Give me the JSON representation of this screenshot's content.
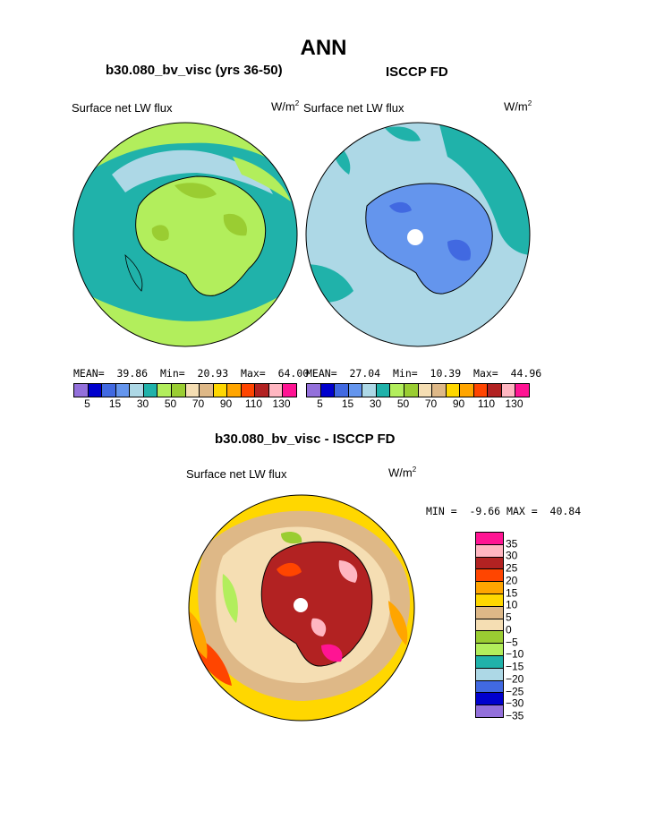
{
  "page": {
    "title": "ANN"
  },
  "panel_left": {
    "subtitle": "b30.080_bv_visc (yrs 36-50)",
    "variable": "Surface net LW flux",
    "units": "W/m",
    "units_sup": "2",
    "mean_label": "MEAN=",
    "mean": "39.86",
    "min_label": "Min=",
    "min": "20.93",
    "max_label": "Max=",
    "max": "64.00"
  },
  "panel_right": {
    "subtitle": "ISCCP FD",
    "variable": "Surface net LW flux",
    "units": "W/m",
    "units_sup": "2",
    "mean_label": "MEAN=",
    "mean": "27.04",
    "min_label": "Min=",
    "min": "10.39",
    "max_label": "Max=",
    "max": "44.96"
  },
  "panel_diff": {
    "subtitle": "b30.080_bv_visc - ISCCP FD",
    "variable": "Surface net LW flux",
    "units": "W/m",
    "units_sup": "2",
    "min_label": "MIN =",
    "min": "-9.66",
    "max_label": "MAX =",
    "max": "40.84"
  },
  "colorbar_main": {
    "colors": [
      "#9370db",
      "#0000cd",
      "#4169e1",
      "#6495ed",
      "#add8e6",
      "#20b2aa",
      "#b2ee5c",
      "#9acd32",
      "#f5deb3",
      "#deb887",
      "#ffd700",
      "#ffa500",
      "#ff4500",
      "#b22222",
      "#ffb6c1",
      "#ff1493"
    ],
    "tick_labels": [
      "5",
      "15",
      "30",
      "50",
      "70",
      "90",
      "110",
      "130"
    ]
  },
  "colorbar_diff": {
    "colors": [
      "#ff1493",
      "#ffb6c1",
      "#b22222",
      "#ff4500",
      "#ffa500",
      "#ffd700",
      "#deb887",
      "#f5deb3",
      "#9acd32",
      "#b2ee5c",
      "#20b2aa",
      "#add8e6",
      "#4169e1",
      "#0000cd",
      "#9370db"
    ],
    "tick_labels": [
      "35",
      "30",
      "25",
      "20",
      "15",
      "10",
      "5",
      "0",
      "−5",
      "−10",
      "−15",
      "−20",
      "−25",
      "−30",
      "−35"
    ]
  }
}
